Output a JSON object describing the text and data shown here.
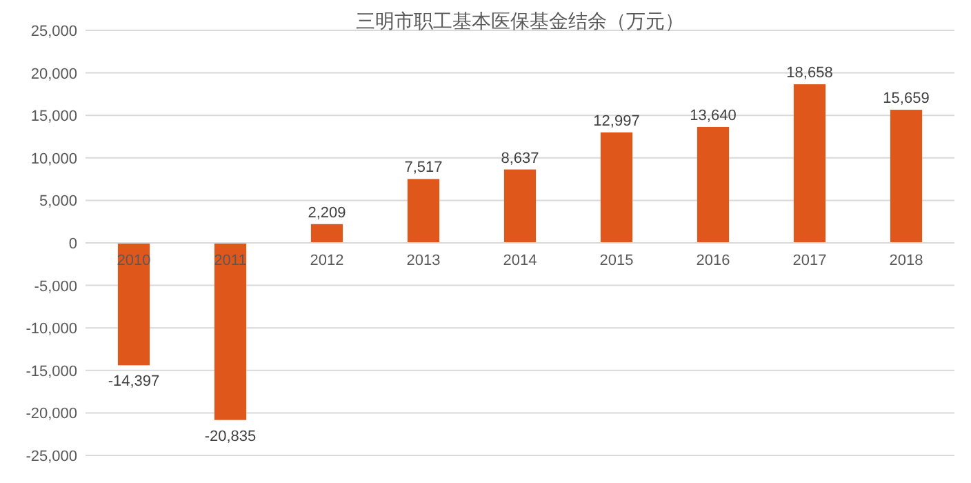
{
  "chart_data": {
    "type": "bar",
    "title": "三明市职工基本医保基金结余（万元）",
    "categories": [
      "2010",
      "2011",
      "2012",
      "2013",
      "2014",
      "2015",
      "2016",
      "2017",
      "2018"
    ],
    "values": [
      -14397,
      -20835,
      2209,
      7517,
      8637,
      12997,
      13640,
      18658,
      15659
    ],
    "value_labels": [
      "-14,397",
      "-20,835",
      "2,209",
      "7,517",
      "8,637",
      "12,997",
      "13,640",
      "18,658",
      "15,659"
    ],
    "color": "#e0571c",
    "ylim": [
      -25000,
      25000
    ],
    "yticks": [
      {
        "value": -25000,
        "label": "-25,000"
      },
      {
        "value": -20000,
        "label": "-20,000"
      },
      {
        "value": -15000,
        "label": "-15,000"
      },
      {
        "value": -10000,
        "label": "-10,000"
      },
      {
        "value": -5000,
        "label": "-5,000"
      },
      {
        "value": 0,
        "label": "0"
      },
      {
        "value": 5000,
        "label": "5,000"
      },
      {
        "value": 10000,
        "label": "10,000"
      },
      {
        "value": 15000,
        "label": "15,000"
      },
      {
        "value": 20000,
        "label": "20,000"
      },
      {
        "value": 25000,
        "label": "25,000"
      }
    ],
    "grid": "y"
  }
}
